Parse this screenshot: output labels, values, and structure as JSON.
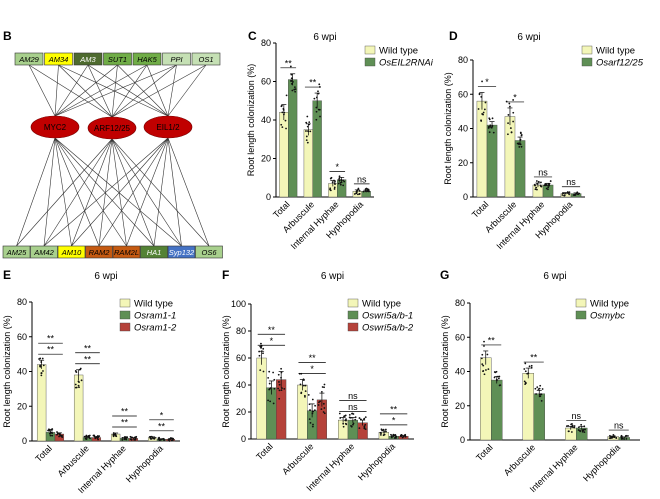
{
  "network": {
    "panel_label": "B",
    "top_genes": [
      {
        "label": "AM29",
        "color": "#a8d08d"
      },
      {
        "label": "AM34",
        "color": "#ffff00"
      },
      {
        "label": "AM3",
        "color": "#4e6b2f"
      },
      {
        "label": "SUT1",
        "color": "#70ad47"
      },
      {
        "label": "HAK5",
        "color": "#70ad47"
      },
      {
        "label": "PPI",
        "color": "#c5e0b4"
      },
      {
        "label": "OS1",
        "color": "#c5e0b4"
      }
    ],
    "regulators": [
      {
        "label": "MYC2",
        "color": "#c00000"
      },
      {
        "label": "ARF12/25",
        "color": "#c00000"
      },
      {
        "label": "EIL1/2",
        "color": "#c00000"
      }
    ],
    "bottom_genes": [
      {
        "label": "AM25",
        "color": "#a8d08d"
      },
      {
        "label": "AM42",
        "color": "#a8d08d"
      },
      {
        "label": "AM10",
        "color": "#ffff00"
      },
      {
        "label": "RAM2",
        "color": "#c55a11"
      },
      {
        "label": "RAM2L",
        "color": "#c55a11"
      },
      {
        "label": "HA1",
        "color": "#548235"
      },
      {
        "label": "Syp132",
        "color": "#4472c4"
      },
      {
        "label": "OS6",
        "color": "#a8d08d"
      }
    ]
  },
  "chart_data": [
    {
      "panel": "C",
      "type": "bar",
      "title": "6 wpi",
      "ylabel": "Root length colonization (%)",
      "ylim": [
        0,
        80
      ],
      "yticks": [
        0,
        20,
        40,
        60,
        80
      ],
      "categories": [
        "Total",
        "Arbuscule",
        "Internal Hyphae",
        "Hyphopodia"
      ],
      "legend_position": "top-right",
      "series": [
        {
          "name": "Wild type",
          "color": "#f3f6b8",
          "values": [
            44,
            35,
            7,
            3
          ],
          "errors": [
            4,
            3,
            1.5,
            0.7
          ]
        },
        {
          "name": "OsEIL2RNAi",
          "color": "#5f8f55",
          "values": [
            61,
            50,
            9,
            3
          ],
          "errors": [
            3,
            4,
            1.2,
            0.6
          ]
        }
      ],
      "significance": [
        {
          "category": 0,
          "label": "**"
        },
        {
          "category": 1,
          "label": "**"
        },
        {
          "category": 2,
          "label": "*"
        },
        {
          "category": 3,
          "label": "ns"
        }
      ]
    },
    {
      "panel": "D",
      "type": "bar",
      "title": "6 wpi",
      "ylabel": "Root length colonization (%)",
      "ylim": [
        0,
        80
      ],
      "yticks": [
        0,
        20,
        40,
        60,
        80
      ],
      "categories": [
        "Total",
        "Arbuscule",
        "Internal Hyphae",
        "Hyphopodia"
      ],
      "legend_position": "top-right",
      "series": [
        {
          "name": "Wild type",
          "color": "#f3f6b8",
          "values": [
            56,
            47,
            7,
            2
          ],
          "errors": [
            5,
            5,
            1.2,
            0.5
          ]
        },
        {
          "name": "Osarf12/25",
          "color": "#5f8f55",
          "values": [
            42,
            33,
            7,
            2
          ],
          "errors": [
            2,
            2,
            1,
            0.4
          ]
        }
      ],
      "significance": [
        {
          "category": 0,
          "label": "*"
        },
        {
          "category": 1,
          "label": "*"
        },
        {
          "category": 2,
          "label": "ns"
        },
        {
          "category": 3,
          "label": "ns"
        }
      ]
    },
    {
      "panel": "E",
      "type": "bar",
      "title": "6 wpi",
      "ylabel": "Root length colonization (%)",
      "ylim": [
        0,
        80
      ],
      "yticks": [
        0,
        20,
        40,
        60,
        80
      ],
      "categories": [
        "Total",
        "Arbuscule",
        "Internal Hyphae",
        "Hyphopodia"
      ],
      "legend_position": "top-right",
      "series": [
        {
          "name": "Wild type",
          "color": "#f3f6b8",
          "values": [
            44,
            38,
            4,
            2
          ],
          "errors": [
            2.5,
            3,
            0.6,
            0.4
          ]
        },
        {
          "name": "Osram1-1",
          "color": "#5f8f55",
          "values": [
            5,
            2,
            1.5,
            1
          ],
          "errors": [
            0.8,
            0.5,
            0.4,
            0.3
          ]
        },
        {
          "name": "Osram1-2",
          "color": "#b5423a",
          "values": [
            4,
            2,
            1.5,
            1
          ],
          "errors": [
            0.7,
            0.5,
            0.4,
            0.3
          ]
        }
      ],
      "significance": [
        {
          "category": 0,
          "label": "**"
        },
        {
          "category": 0,
          "label": "**"
        },
        {
          "category": 1,
          "label": "**"
        },
        {
          "category": 1,
          "label": "**"
        },
        {
          "category": 2,
          "label": "**"
        },
        {
          "category": 2,
          "label": "**"
        },
        {
          "category": 3,
          "label": "**"
        },
        {
          "category": 3,
          "label": "*"
        }
      ]
    },
    {
      "panel": "F",
      "type": "bar",
      "title": "6 wpi",
      "ylabel": "Root length colonization (%)",
      "ylim": [
        0,
        100
      ],
      "yticks": [
        0,
        20,
        40,
        60,
        80,
        100
      ],
      "categories": [
        "Total",
        "Arbuscule",
        "Internal Hyphae",
        "Hyphopodia"
      ],
      "legend_position": "top-right",
      "series": [
        {
          "name": "Wild type",
          "color": "#f3f6b8",
          "values": [
            60,
            40,
            14,
            5
          ],
          "errors": [
            5,
            4,
            2,
            1
          ]
        },
        {
          "name": "Oswri5a/b-1",
          "color": "#5f8f55",
          "values": [
            38,
            21,
            14,
            2
          ],
          "errors": [
            5,
            5,
            2,
            0.5
          ]
        },
        {
          "name": "Oswri5a/b-2",
          "color": "#b5423a",
          "values": [
            44,
            29,
            12,
            2
          ],
          "errors": [
            6,
            5,
            2,
            0.5
          ]
        }
      ],
      "significance": [
        {
          "category": 0,
          "label": "*"
        },
        {
          "category": 0,
          "label": "**"
        },
        {
          "category": 1,
          "label": "*"
        },
        {
          "category": 1,
          "label": "**"
        },
        {
          "category": 2,
          "label": "ns"
        },
        {
          "category": 2,
          "label": "ns"
        },
        {
          "category": 3,
          "label": "*"
        },
        {
          "category": 3,
          "label": "**"
        }
      ]
    },
    {
      "panel": "G",
      "type": "bar",
      "title": "6 wpi",
      "ylabel": "Root length colonization (%)",
      "ylim": [
        0,
        80
      ],
      "yticks": [
        0,
        20,
        40,
        60,
        80
      ],
      "categories": [
        "Total",
        "Arbuscule",
        "Internal Hyphae",
        "Hyphopodia"
      ],
      "legend_position": "top-right",
      "series": [
        {
          "name": "Wild type",
          "color": "#f3f6b8",
          "values": [
            48,
            39,
            7,
            2
          ],
          "errors": [
            4,
            3,
            1,
            0.3
          ]
        },
        {
          "name": "Osmybc",
          "color": "#5f8f55",
          "values": [
            35,
            27,
            7,
            1.5
          ],
          "errors": [
            2,
            2,
            1,
            0.3
          ]
        }
      ],
      "significance": [
        {
          "category": 0,
          "label": "**"
        },
        {
          "category": 1,
          "label": "**"
        },
        {
          "category": 2,
          "label": "ns"
        },
        {
          "category": 3,
          "label": "ns"
        }
      ]
    }
  ]
}
